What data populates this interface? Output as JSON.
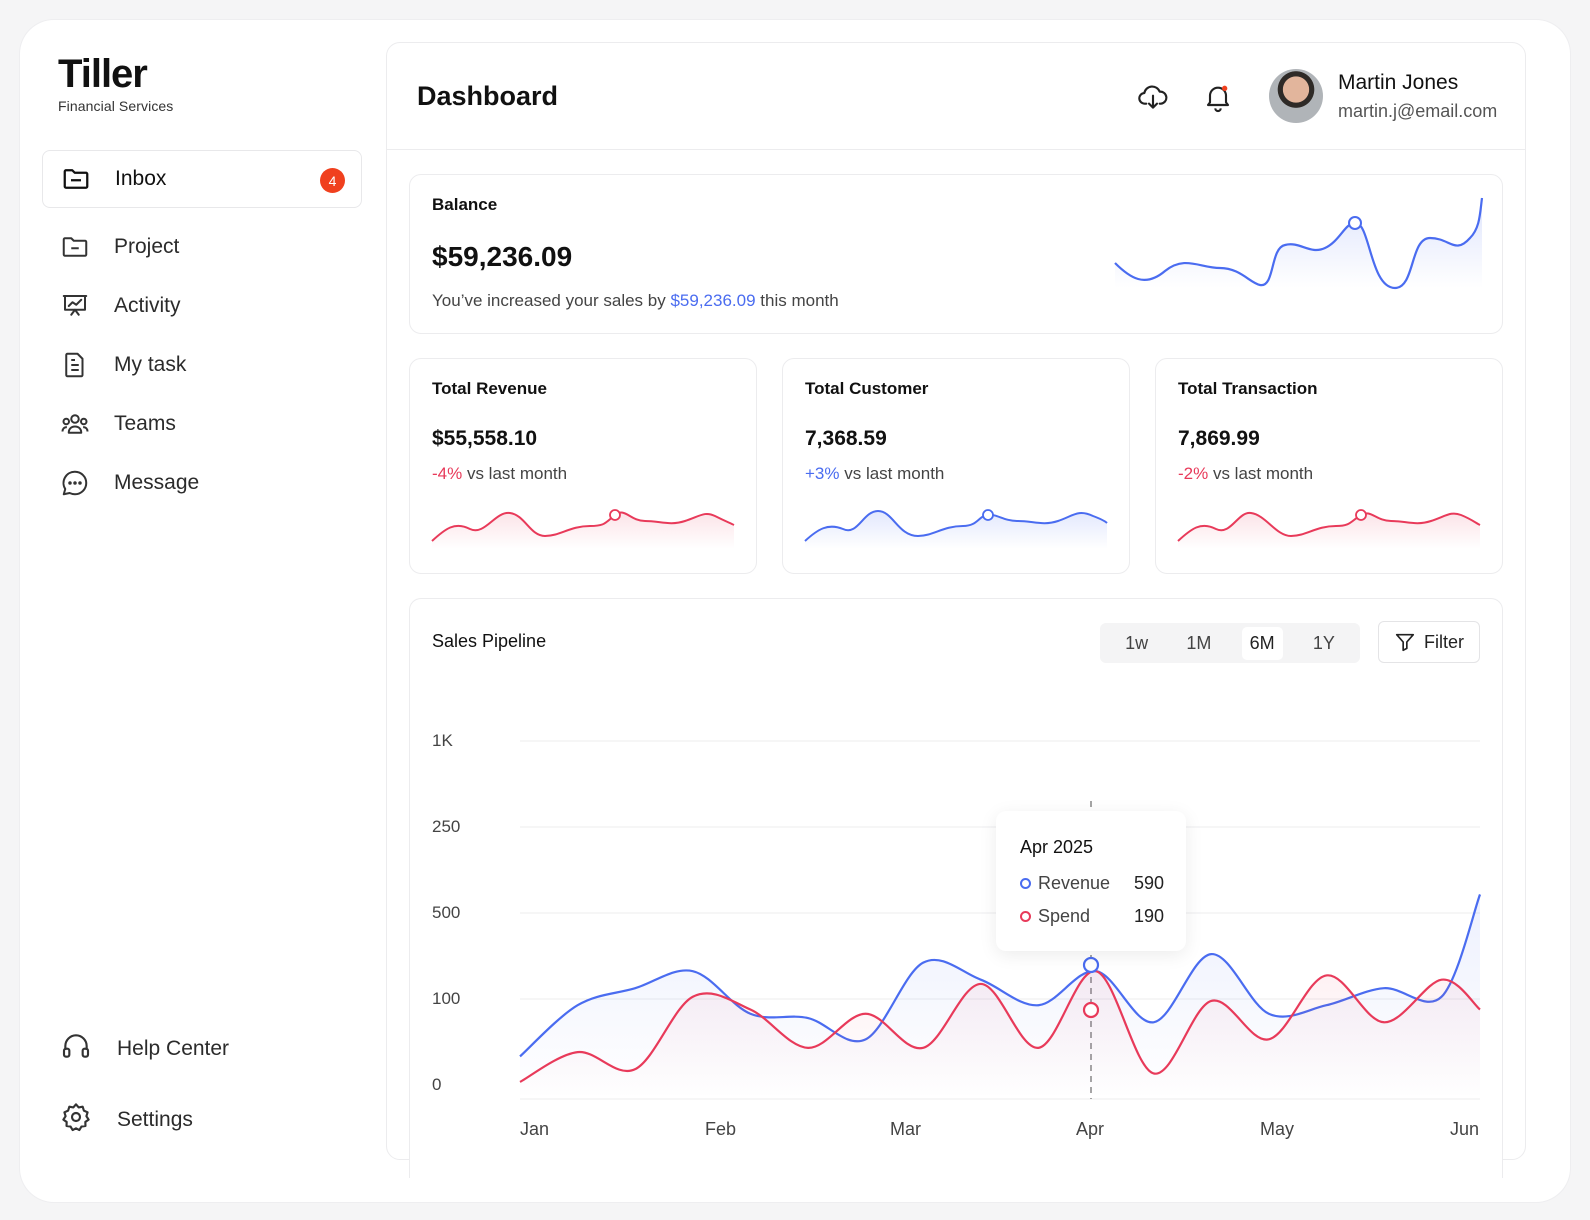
{
  "brand": {
    "name": "Tiller",
    "subtitle": "Financial Services"
  },
  "sidebar": {
    "items": [
      {
        "label": "Inbox",
        "icon": "folder-icon",
        "badge": "4",
        "active": true
      },
      {
        "label": "Project",
        "icon": "folder-minus-icon"
      },
      {
        "label": "Activity",
        "icon": "presentation-chart-icon"
      },
      {
        "label": "My task",
        "icon": "document-icon"
      },
      {
        "label": "Teams",
        "icon": "users-icon"
      },
      {
        "label": "Message",
        "icon": "chat-bubble-icon"
      }
    ],
    "bottom": [
      {
        "label": "Help Center",
        "icon": "headphones-icon"
      },
      {
        "label": "Settings",
        "icon": "gear-icon"
      }
    ]
  },
  "header": {
    "title": "Dashboard",
    "user": {
      "name": "Martin Jones",
      "email": "martin.j@email.com"
    }
  },
  "balance": {
    "title": "Balance",
    "value": "$59,236.09",
    "note_prefix": "You’ve increased your sales by ",
    "note_amount": "$59,236.09",
    "note_suffix": " this month"
  },
  "stats": [
    {
      "title": "Total Revenue",
      "value": "$55,558.10",
      "delta": "-4%",
      "delta_suffix": " vs last month",
      "trend": "down",
      "color": "#e83a5a"
    },
    {
      "title": "Total Customer",
      "value": "7,368.59",
      "delta": "+3%",
      "delta_suffix": " vs last month",
      "trend": "up",
      "color": "#4a6cf0"
    },
    {
      "title": "Total Transaction",
      "value": "7,869.99",
      "delta": "-2%",
      "delta_suffix": " vs last month",
      "trend": "down",
      "color": "#e83a5a"
    }
  ],
  "pipeline": {
    "title": "Sales Pipeline",
    "ranges": [
      "1w",
      "1M",
      "6M",
      "1Y"
    ],
    "selected_range": "6M",
    "filter_label": "Filter",
    "tooltip": {
      "title": "Apr 2025",
      "rows": [
        {
          "label": "Revenue",
          "value": "590",
          "color": "#4a6cf0"
        },
        {
          "label": "Spend",
          "value": "190",
          "color": "#e83a5a"
        }
      ]
    }
  },
  "chart_data": {
    "type": "line",
    "title": "Sales Pipeline",
    "x_ticks": [
      "Jan",
      "Feb",
      "Mar",
      "Apr",
      "May",
      "Jun"
    ],
    "y_ticks": [
      "0",
      "100",
      "250",
      "500",
      "1K"
    ],
    "series": [
      {
        "name": "Revenue",
        "color": "#4a6cf0",
        "x": [
          0,
          0.3,
          0.6,
          0.9,
          1.2,
          1.5,
          1.8,
          2.1,
          2.4,
          2.7,
          3.0,
          3.3,
          3.6,
          3.9,
          4.2,
          4.5,
          4.8,
          5.0
        ],
        "y": [
          50,
          110,
          130,
          150,
          100,
          95,
          70,
          160,
          140,
          110,
          150,
          90,
          170,
          100,
          110,
          130,
          120,
          240
        ]
      },
      {
        "name": "Spend",
        "color": "#e83a5a",
        "x": [
          0,
          0.3,
          0.6,
          0.9,
          1.2,
          1.5,
          1.8,
          2.1,
          2.4,
          2.7,
          3.0,
          3.3,
          3.6,
          3.9,
          4.2,
          4.5,
          4.8,
          5.0
        ],
        "y": [
          20,
          55,
          35,
          120,
          105,
          60,
          100,
          60,
          135,
          60,
          150,
          30,
          115,
          70,
          145,
          90,
          140,
          105
        ]
      }
    ],
    "highlight": {
      "x_label": "Apr",
      "revenue": 590,
      "spend": 190
    }
  }
}
